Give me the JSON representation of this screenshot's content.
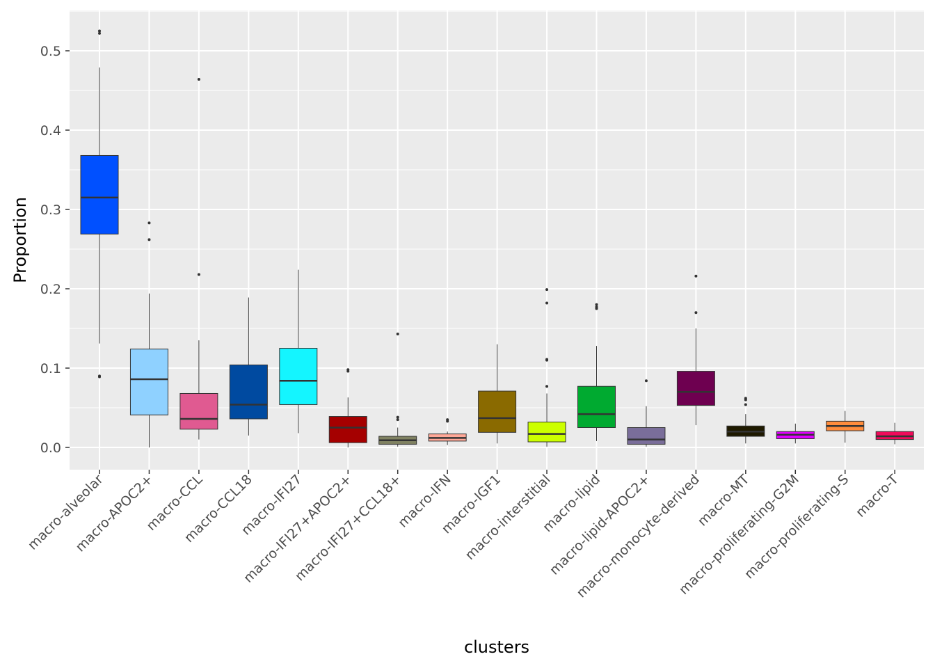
{
  "chart_data": {
    "type": "boxplot",
    "title": "",
    "xlabel": "clusters",
    "ylabel": "Proportion",
    "ylim": [
      -0.027,
      0.55
    ],
    "yticks": [
      0.0,
      0.1,
      0.2,
      0.3,
      0.4,
      0.5
    ],
    "ytick_labels": [
      "0.0",
      "0.1",
      "0.2",
      "0.3",
      "0.4",
      "0.5"
    ],
    "grid": true,
    "legend": "none",
    "categories": [
      "macro-alveolar",
      "macro-APOC2+",
      "macro-CCL",
      "macro-CCL18",
      "macro-IFI27",
      "macro-IFI27+APOC2+",
      "macro-IFI27+CCL18+",
      "macro-IFN",
      "macro-IGF1",
      "macro-interstitial",
      "macro-lipid",
      "macro-lipid-APOC2+",
      "macro-monocyte-derived",
      "macro-MT",
      "macro-proliferating-G2M",
      "macro-proliferating-S",
      "macro-T"
    ],
    "boxes": [
      {
        "min": 0.131,
        "q1": 0.269,
        "median": 0.315,
        "q3": 0.368,
        "max": 0.479,
        "outliers": [
          0.525,
          0.522,
          0.09,
          0.089
        ],
        "color": "#0050ff"
      },
      {
        "min": 0.0,
        "q1": 0.041,
        "median": 0.086,
        "q3": 0.124,
        "max": 0.194,
        "outliers": [
          0.283,
          0.262
        ],
        "color": "#8fd1ff"
      },
      {
        "min": 0.01,
        "q1": 0.023,
        "median": 0.036,
        "q3": 0.068,
        "max": 0.135,
        "outliers": [
          0.464,
          0.218
        ],
        "color": "#e05a91"
      },
      {
        "min": 0.015,
        "q1": 0.036,
        "median": 0.054,
        "q3": 0.104,
        "max": 0.189,
        "outliers": [],
        "color": "#004aa0"
      },
      {
        "min": 0.018,
        "q1": 0.054,
        "median": 0.084,
        "q3": 0.125,
        "max": 0.224,
        "outliers": [],
        "color": "#14f5ff"
      },
      {
        "min": 0.0,
        "q1": 0.006,
        "median": 0.025,
        "q3": 0.039,
        "max": 0.063,
        "outliers": [
          0.098,
          0.096
        ],
        "color": "#a50000"
      },
      {
        "min": 0.001,
        "q1": 0.004,
        "median": 0.009,
        "q3": 0.014,
        "max": 0.025,
        "outliers": [
          0.143,
          0.038,
          0.035
        ],
        "color": "#808262"
      },
      {
        "min": 0.003,
        "q1": 0.008,
        "median": 0.012,
        "q3": 0.017,
        "max": 0.02,
        "outliers": [
          0.035,
          0.033
        ],
        "color": "#ffa898"
      },
      {
        "min": 0.005,
        "q1": 0.019,
        "median": 0.037,
        "q3": 0.071,
        "max": 0.13,
        "outliers": [],
        "color": "#8a6a00"
      },
      {
        "min": 0.001,
        "q1": 0.007,
        "median": 0.017,
        "q3": 0.032,
        "max": 0.068,
        "outliers": [
          0.199,
          0.182,
          0.111,
          0.11,
          0.077
        ],
        "color": "#ccff00"
      },
      {
        "min": 0.008,
        "q1": 0.025,
        "median": 0.042,
        "q3": 0.077,
        "max": 0.128,
        "outliers": [
          0.18,
          0.177,
          0.175
        ],
        "color": "#00aa30"
      },
      {
        "min": 0.001,
        "q1": 0.004,
        "median": 0.01,
        "q3": 0.025,
        "max": 0.052,
        "outliers": [
          0.084
        ],
        "color": "#7a6e9a"
      },
      {
        "min": 0.028,
        "q1": 0.053,
        "median": 0.07,
        "q3": 0.096,
        "max": 0.15,
        "outliers": [
          0.216,
          0.17
        ],
        "color": "#6e0050"
      },
      {
        "min": 0.005,
        "q1": 0.014,
        "median": 0.02,
        "q3": 0.027,
        "max": 0.042,
        "outliers": [
          0.062,
          0.06,
          0.054
        ],
        "color": "#1f1a00"
      },
      {
        "min": 0.005,
        "q1": 0.011,
        "median": 0.016,
        "q3": 0.02,
        "max": 0.03,
        "outliers": [],
        "color": "#e000ff"
      },
      {
        "min": 0.006,
        "q1": 0.021,
        "median": 0.027,
        "q3": 0.033,
        "max": 0.046,
        "outliers": [],
        "color": "#ff8c3c"
      },
      {
        "min": 0.004,
        "q1": 0.01,
        "median": 0.014,
        "q3": 0.02,
        "max": 0.031,
        "outliers": [],
        "color": "#f00a5a"
      }
    ]
  }
}
